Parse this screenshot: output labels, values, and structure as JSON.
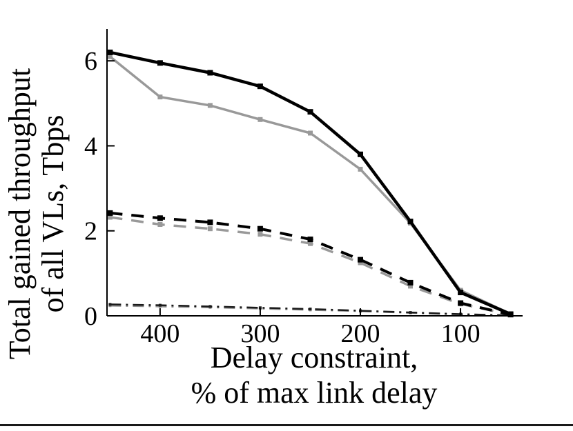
{
  "figure": {
    "background": "#ffffff",
    "bottom_edge_color": "#1a1a1a"
  },
  "chart_data": {
    "type": "line",
    "title": "",
    "xlabel_lines": [
      "Delay constraint,",
      "% of max link delay"
    ],
    "ylabel_lines": [
      "Total gained throughput",
      "of all VLs, Tbps"
    ],
    "x_axis_reversed": true,
    "xlim": [
      453,
      38
    ],
    "ylim": [
      0,
      6.75
    ],
    "x_ticks": [
      400,
      300,
      200,
      100
    ],
    "y_ticks": [
      0,
      2,
      4,
      6
    ],
    "grid": false,
    "legend": "none",
    "axis_color": "#000000",
    "x": [
      450,
      400,
      350,
      300,
      250,
      200,
      150,
      100,
      50
    ],
    "series": [
      {
        "name": "gray-dashdot",
        "color": "#8c8c8c",
        "style": "dashdot",
        "width": 2.5,
        "marker": 4,
        "values": [
          0.24,
          0.22,
          0.2,
          0.17,
          0.14,
          0.11,
          0.07,
          0.03,
          0.01
        ]
      },
      {
        "name": "black-dashdot",
        "color": "#1a1a1a",
        "style": "dashdot",
        "width": 2.5,
        "marker": 4,
        "values": [
          0.27,
          0.25,
          0.22,
          0.19,
          0.16,
          0.12,
          0.08,
          0.04,
          0.01
        ]
      },
      {
        "name": "gray-dashed",
        "color": "#999999",
        "style": "dashed",
        "width": 3.5,
        "marker": 7,
        "values": [
          2.32,
          2.15,
          2.05,
          1.92,
          1.7,
          1.25,
          0.7,
          0.28,
          0.03
        ]
      },
      {
        "name": "black-dashed",
        "color": "#000000",
        "style": "dashed",
        "width": 4,
        "marker": 8,
        "values": [
          2.42,
          2.3,
          2.2,
          2.05,
          1.8,
          1.32,
          0.78,
          0.3,
          0.03
        ]
      },
      {
        "name": "gray-solid",
        "color": "#999999",
        "style": "solid",
        "width": 3.5,
        "marker": 7,
        "values": [
          6.1,
          5.15,
          4.95,
          4.62,
          4.3,
          3.45,
          2.18,
          0.6,
          0.04
        ]
      },
      {
        "name": "black-solid",
        "color": "#000000",
        "style": "solid",
        "width": 4.5,
        "marker": 8,
        "values": [
          6.2,
          5.95,
          5.72,
          5.4,
          4.8,
          3.8,
          2.22,
          0.55,
          0.04
        ]
      }
    ]
  }
}
